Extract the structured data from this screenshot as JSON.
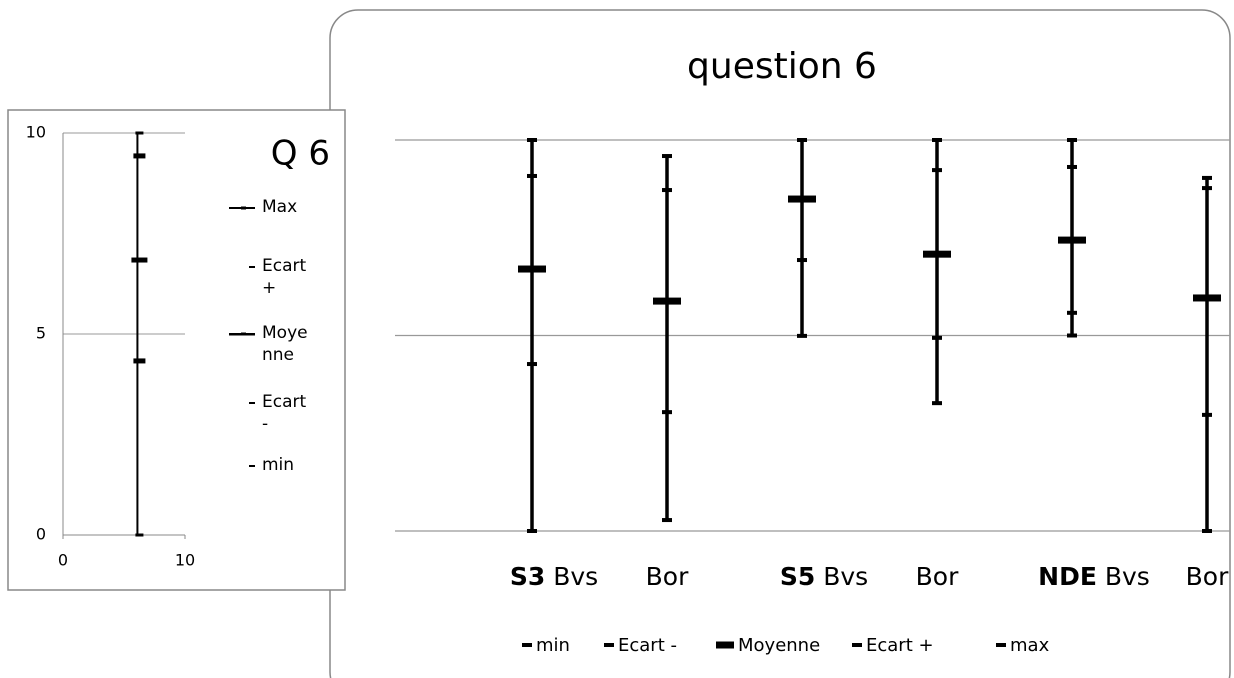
{
  "chart_data": [
    {
      "type": "hilo",
      "title": "question 6",
      "categories": [
        "Bvs",
        "Bor",
        "Bvs",
        "Bor",
        "Bvs",
        "Bor"
      ],
      "category_groups": [
        "S3",
        null,
        "S5",
        null,
        "NDE",
        null
      ],
      "ylim": [
        0,
        10
      ],
      "yticks": [
        0,
        5,
        10
      ],
      "grid": true,
      "legend": "bottom",
      "series": [
        {
          "name": "min",
          "color": "#000000",
          "values": [
            0,
            0.28,
            4.99,
            3.27,
            5.0,
            0
          ]
        },
        {
          "name": "Ecart -",
          "color": "#000000",
          "values": [
            4.27,
            3.04,
            6.93,
            4.94,
            5.58,
            2.97
          ]
        },
        {
          "name": "Moyenne",
          "color": "#000000",
          "values": [
            6.7,
            5.88,
            8.49,
            7.08,
            7.44,
            5.96
          ]
        },
        {
          "name": "Ecart +",
          "color": "#000000",
          "values": [
            9.08,
            8.72,
            10,
            9.23,
            9.31,
            8.77
          ]
        },
        {
          "name": "max",
          "color": "#000000",
          "values": [
            10,
            9.59,
            10,
            10,
            10,
            9.03
          ]
        }
      ]
    },
    {
      "type": "hilo-xy",
      "title": "Q 6",
      "x": [
        6.1
      ],
      "xlim": [
        0,
        10
      ],
      "xticks": [
        0,
        10
      ],
      "ylim": [
        0,
        10
      ],
      "yticks": [
        0,
        5,
        10
      ],
      "grid": true,
      "legend": "right",
      "series": [
        {
          "name": "Max",
          "color": "#000000",
          "values": [
            10
          ]
        },
        {
          "name": "Ecart +",
          "color": "#000000",
          "values": [
            9.43
          ]
        },
        {
          "name": "Moyenne",
          "color": "#000000",
          "values": [
            6.84
          ]
        },
        {
          "name": "Ecart -",
          "color": "#000000",
          "values": [
            4.33
          ]
        },
        {
          "name": "min",
          "color": "#000000",
          "values": [
            0
          ]
        }
      ]
    }
  ]
}
